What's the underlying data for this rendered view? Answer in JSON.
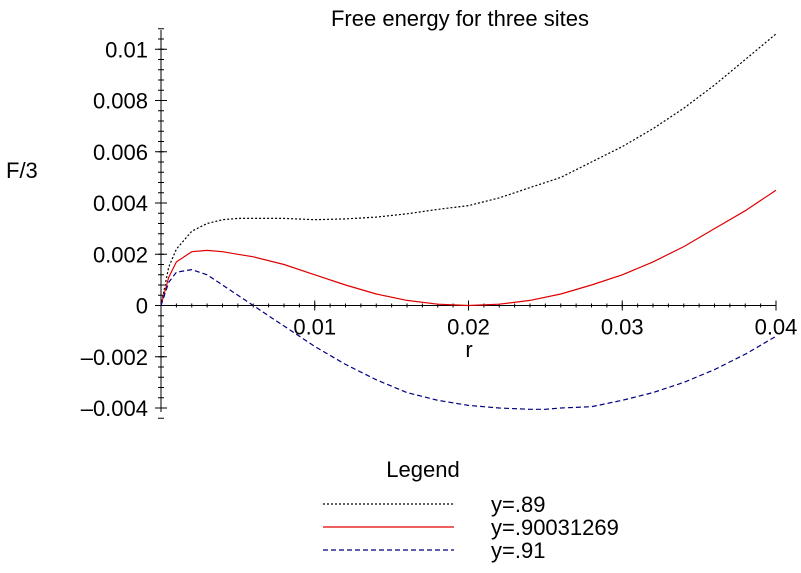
{
  "chart_data": {
    "type": "line",
    "title": "Free energy for three sites",
    "xlabel": "r",
    "ylabel": "F/3",
    "xlim": [
      0,
      0.04
    ],
    "ylim": [
      -0.0045,
      0.011
    ],
    "x_ticks": [
      {
        "value": 0.01,
        "label": "0.01"
      },
      {
        "value": 0.02,
        "label": "0.02"
      },
      {
        "value": 0.03,
        "label": "0.03"
      },
      {
        "value": 0.04,
        "label": "0.04"
      }
    ],
    "y_ticks": [
      {
        "value": 0.01,
        "label": "0.01"
      },
      {
        "value": 0.008,
        "label": "0.008"
      },
      {
        "value": 0.006,
        "label": "0.006"
      },
      {
        "value": 0.004,
        "label": "0.004"
      },
      {
        "value": 0.002,
        "label": "0.002"
      },
      {
        "value": 0,
        "label": "0"
      },
      {
        "value": -0.002,
        "label": "–0.002"
      },
      {
        "value": -0.004,
        "label": "–0.004"
      }
    ],
    "legend": {
      "title": "Legend",
      "placement": "bottom"
    },
    "series": [
      {
        "name": "y=.89",
        "color": "#000000",
        "dash": "dotted",
        "x": [
          0,
          0.0005,
          0.001,
          0.002,
          0.003,
          0.004,
          0.005,
          0.006,
          0.008,
          0.01,
          0.012,
          0.014,
          0.016,
          0.018,
          0.02,
          0.022,
          0.024,
          0.026,
          0.028,
          0.03,
          0.032,
          0.034,
          0.036,
          0.038,
          0.04
        ],
        "y": [
          0,
          0.0015,
          0.0022,
          0.0029,
          0.0032,
          0.00335,
          0.0034,
          0.0034,
          0.0034,
          0.00335,
          0.00338,
          0.00345,
          0.00358,
          0.00375,
          0.0039,
          0.0042,
          0.0046,
          0.005,
          0.0056,
          0.0062,
          0.0069,
          0.0077,
          0.0086,
          0.0096,
          0.0106
        ]
      },
      {
        "name": "y=.90031269",
        "color": "#e00000",
        "dash": "solid",
        "x": [
          0,
          0.0005,
          0.001,
          0.002,
          0.003,
          0.004,
          0.005,
          0.006,
          0.008,
          0.01,
          0.012,
          0.014,
          0.016,
          0.018,
          0.02,
          0.022,
          0.024,
          0.026,
          0.028,
          0.03,
          0.032,
          0.034,
          0.036,
          0.038,
          0.04
        ],
        "y": [
          0,
          0.0011,
          0.0017,
          0.0021,
          0.00215,
          0.0021,
          0.002,
          0.0019,
          0.0016,
          0.0012,
          0.0008,
          0.00045,
          0.0002,
          5e-05,
          0,
          5e-05,
          0.0002,
          0.00045,
          0.0008,
          0.0012,
          0.0017,
          0.0023,
          0.003,
          0.0037,
          0.0045
        ]
      },
      {
        "name": "y=.91",
        "color": "#000080",
        "dash": "dashed",
        "x": [
          0,
          0.0005,
          0.001,
          0.002,
          0.003,
          0.004,
          0.005,
          0.006,
          0.007,
          0.008,
          0.01,
          0.012,
          0.014,
          0.016,
          0.018,
          0.02,
          0.022,
          0.024,
          0.025,
          0.026,
          0.028,
          0.03,
          0.032,
          0.034,
          0.036,
          0.038,
          0.04
        ],
        "y": [
          0,
          0.0009,
          0.0013,
          0.0014,
          0.0012,
          0.0008,
          0.0004,
          0,
          -0.0004,
          -0.0008,
          -0.0016,
          -0.0023,
          -0.0029,
          -0.0034,
          -0.0037,
          -0.0039,
          -0.004,
          -0.00405,
          -0.00405,
          -0.004,
          -0.00395,
          -0.0037,
          -0.0034,
          -0.003,
          -0.0025,
          -0.0019,
          -0.0012
        ]
      }
    ]
  }
}
